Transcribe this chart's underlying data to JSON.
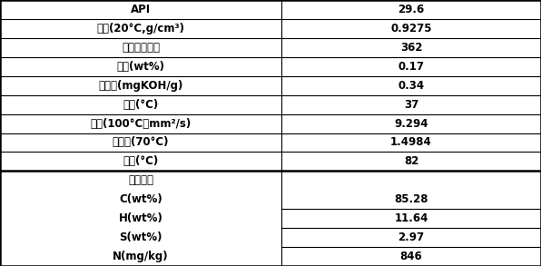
{
  "col_split": 0.52,
  "border_color": "#000000",
  "text_color": "#000000",
  "bg_color": "#ffffff",
  "font_size": 8.5,
  "top_rows": [
    {
      "label": "API",
      "value": "29.6"
    },
    {
      "label": "密度(20°C,g/cm³)",
      "value": "0.9275"
    },
    {
      "label": "相对分子质量",
      "value": "362"
    },
    {
      "label": "溺点(wt%)",
      "value": "0.17"
    },
    {
      "label": "总酸值(mgKOH/g)",
      "value": "0.34"
    },
    {
      "label": "凝点(°C)",
      "value": "37"
    },
    {
      "label": "粘度(100°C，mm²/s)",
      "value": "9.294"
    },
    {
      "label": "折射率(70°C)",
      "value": "1.4984"
    },
    {
      "label": "永点(°C)",
      "value": "82"
    }
  ],
  "bottom_header": "元素分析",
  "bottom_rows": [
    {
      "label": "C(wt%)",
      "value": "85.28"
    },
    {
      "label": "H(wt%)",
      "value": "11.64"
    },
    {
      "label": "S(wt%)",
      "value": "2.97"
    },
    {
      "label": "N(mg/kg)",
      "value": "846"
    }
  ]
}
